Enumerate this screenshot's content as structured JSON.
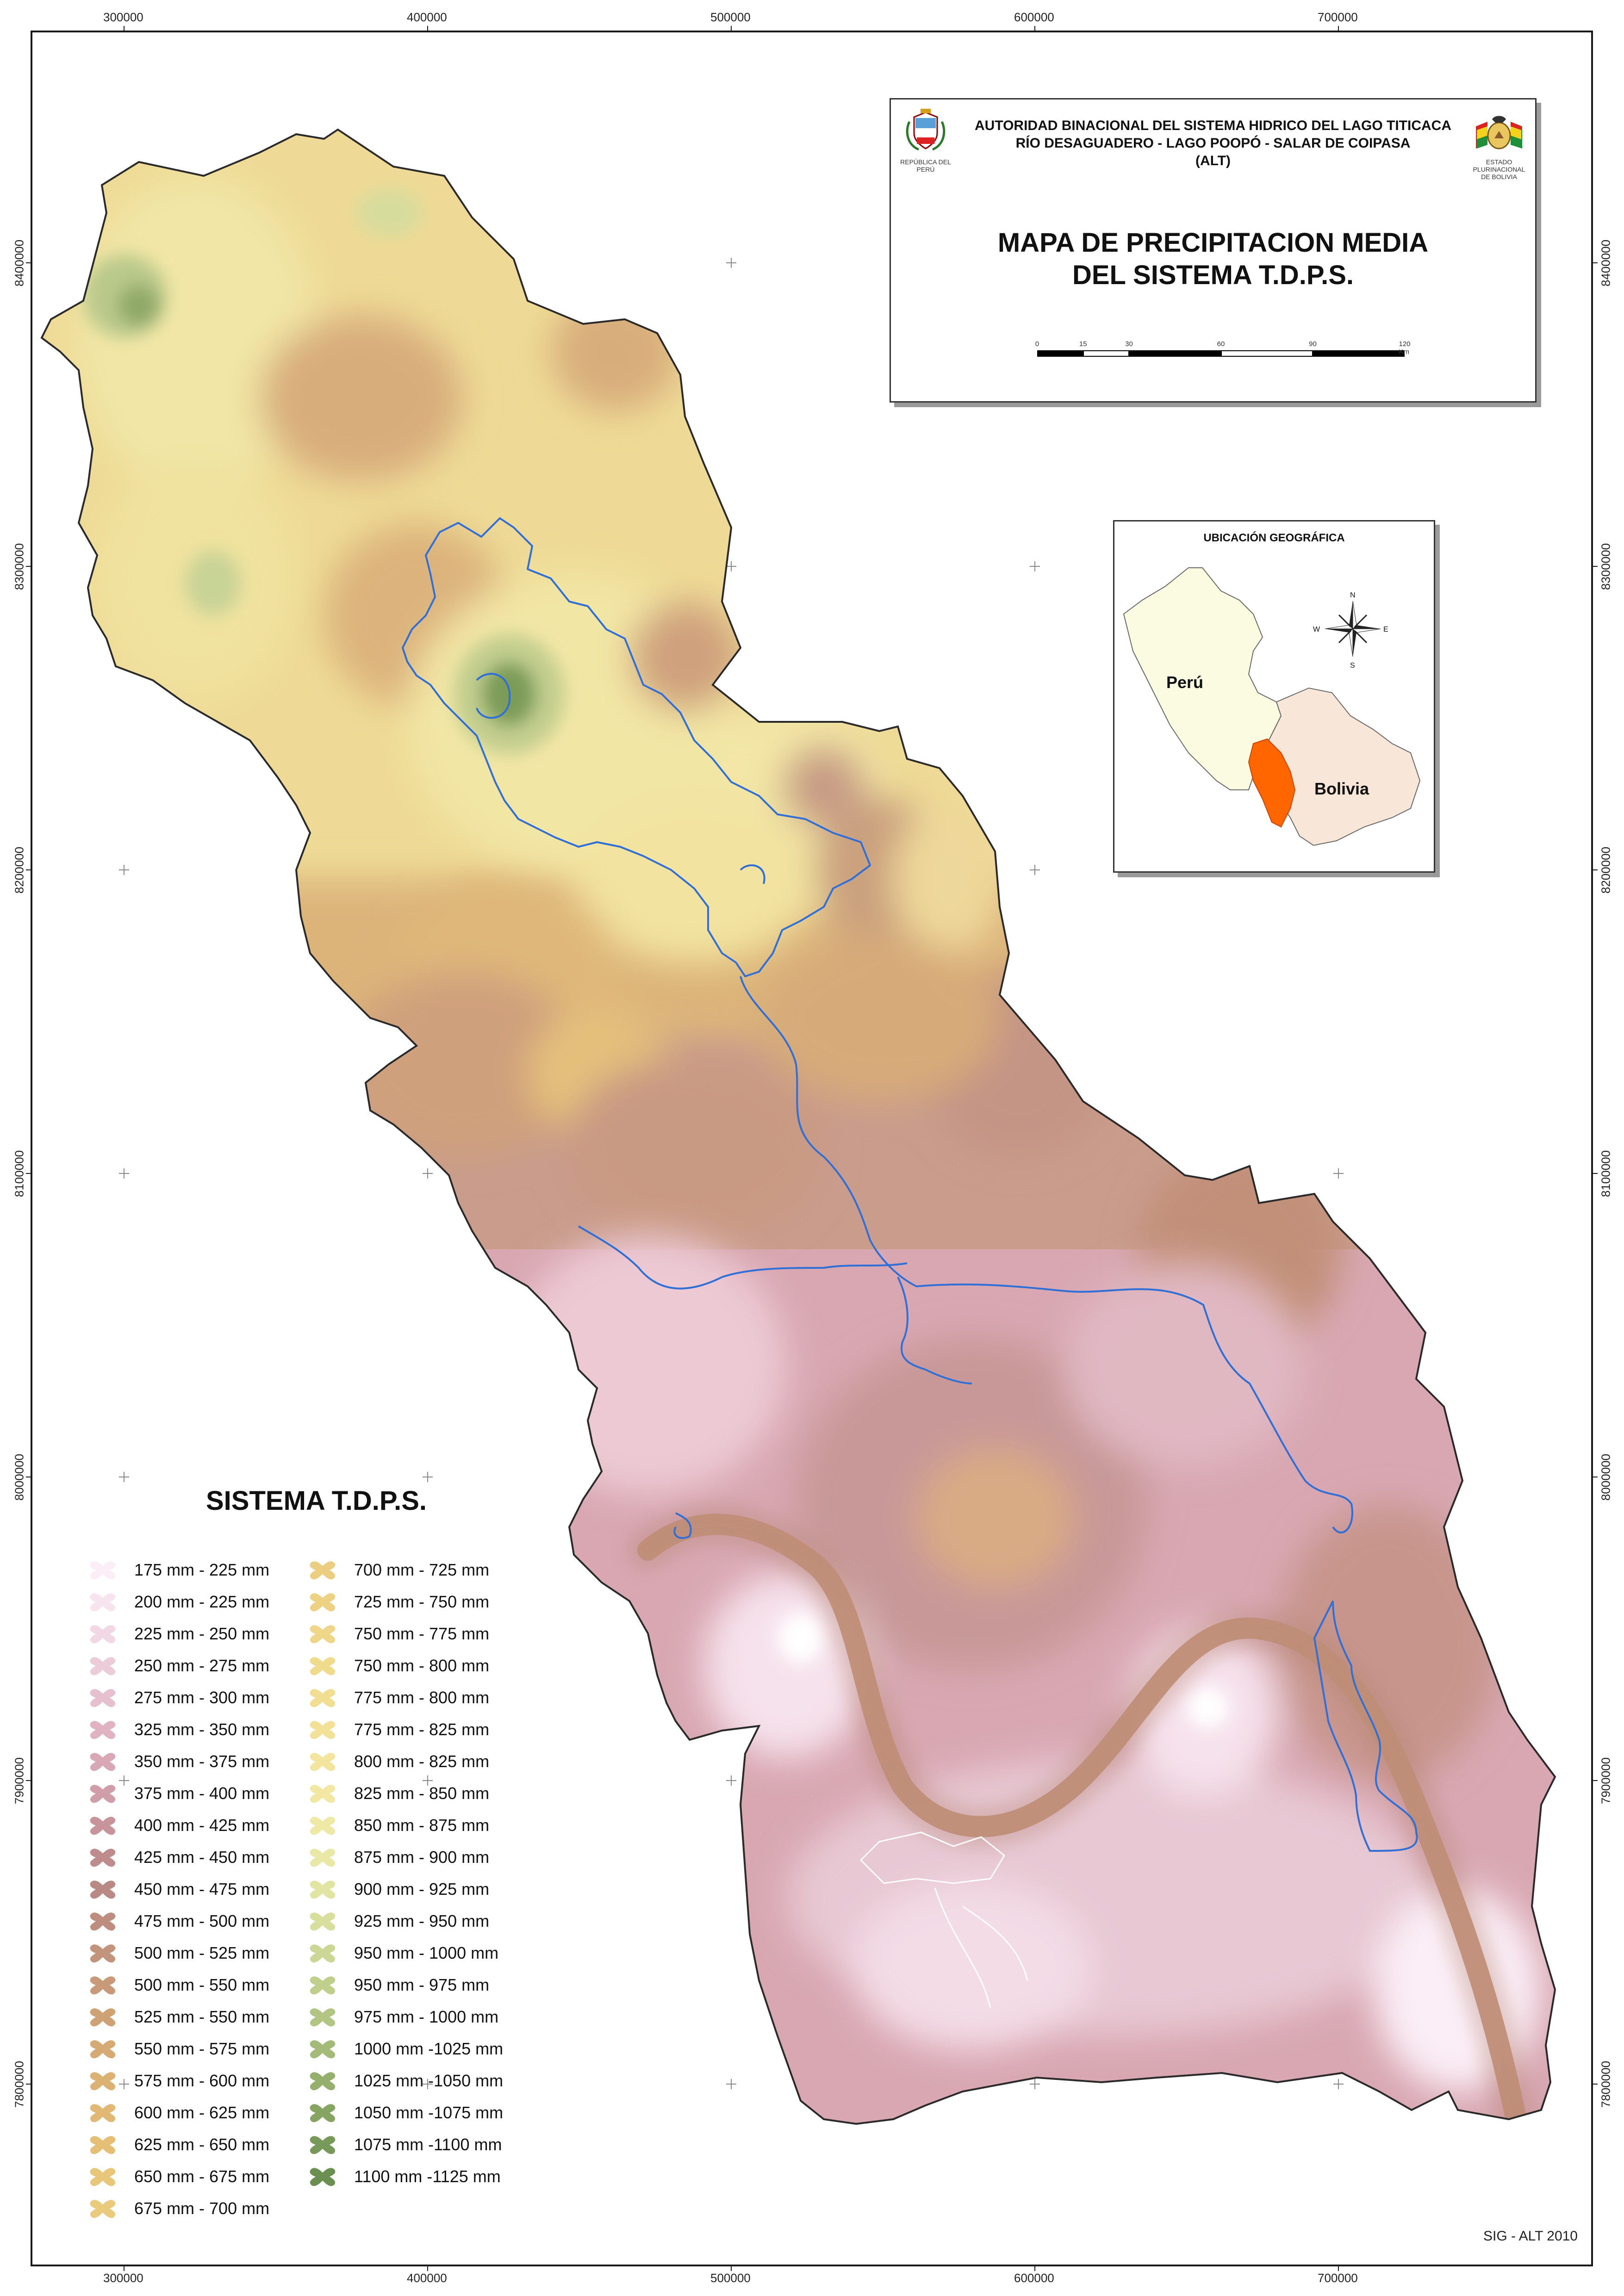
{
  "map": {
    "title_line1": "MAPA DE PRECIPITACION MEDIA",
    "title_line2": "DEL SISTEMA T.D.P.S.",
    "org_line1": "AUTORIDAD BINACIONAL DEL SISTEMA HIDRICO DEL LAGO TITICACA",
    "org_line2": "RÍO DESAGUADERO - LAGO POOPÓ - SALAR DE COIPASA",
    "org_line3": "(ALT)",
    "peru_emblem_caption": "REPÚBLICA DEL PERÚ",
    "bolivia_emblem_caption_1": "ESTADO PLURINACIONAL",
    "bolivia_emblem_caption_2": "DE BOLIVIA",
    "credit": "SIG - ALT 2010"
  },
  "scale": {
    "labels": [
      "0",
      "15",
      "30",
      "60",
      "90",
      "120 Km"
    ],
    "values_km": [
      0,
      15,
      30,
      60,
      90,
      120
    ]
  },
  "grid": {
    "easting_labels": [
      "300000",
      "400000",
      "500000",
      "600000",
      "700000"
    ],
    "northing_labels": [
      "8400000",
      "8300000",
      "8200000",
      "8100000",
      "8000000",
      "7900000",
      "7800000"
    ]
  },
  "location_inset": {
    "title": "UBICACIÓN GEOGRÁFICA",
    "country_1": "Perú",
    "country_2": "Bolivia",
    "compass": {
      "n": "N",
      "s": "S",
      "e": "E",
      "w": "W"
    }
  },
  "legend": {
    "title": "SISTEMA T.D.P.S.",
    "column_1": [
      {
        "label": "175 mm - 225 mm",
        "color": "#fbeef6"
      },
      {
        "label": "200 mm - 225 mm",
        "color": "#f7e4ee"
      },
      {
        "label": "225 mm - 250 mm",
        "color": "#f2d8e4"
      },
      {
        "label": "250 mm - 275 mm",
        "color": "#ecccd9"
      },
      {
        "label": "275 mm - 300 mm",
        "color": "#e6c0cf"
      },
      {
        "label": "325 mm - 350 mm",
        "color": "#dfb3c2"
      },
      {
        "label": "350 mm - 375 mm",
        "color": "#d9a8b6"
      },
      {
        "label": "375 mm - 400 mm",
        "color": "#d09ea8"
      },
      {
        "label": "400 mm - 425 mm",
        "color": "#c8949b"
      },
      {
        "label": "425 mm - 450 mm",
        "color": "#bf8c8e"
      },
      {
        "label": "450 mm - 475 mm",
        "color": "#b98a84"
      },
      {
        "label": "475 mm - 500 mm",
        "color": "#bd8e80"
      },
      {
        "label": "500 mm - 525 mm",
        "color": "#c2947c"
      },
      {
        "label": "500 mm - 550 mm",
        "color": "#c89a79"
      },
      {
        "label": "525 mm - 550 mm",
        "color": "#cfa276"
      },
      {
        "label": "550 mm - 575 mm",
        "color": "#d6aa74"
      },
      {
        "label": "575 mm - 600 mm",
        "color": "#dcb274"
      },
      {
        "label": "600 mm - 625 mm",
        "color": "#e1b974"
      },
      {
        "label": "625 mm - 650 mm",
        "color": "#e5bf76"
      },
      {
        "label": "650 mm - 675 mm",
        "color": "#e8c67a"
      },
      {
        "label": "675 mm - 700 mm",
        "color": "#eacb7d"
      }
    ],
    "column_2": [
      {
        "label": "700 mm - 725 mm",
        "color": "#ecce80"
      },
      {
        "label": "725 mm - 750 mm",
        "color": "#eed284"
      },
      {
        "label": "750 mm - 775 mm",
        "color": "#efd688"
      },
      {
        "label": "750 mm - 800 mm",
        "color": "#f0da8c"
      },
      {
        "label": "775 mm - 800 mm",
        "color": "#f1de91"
      },
      {
        "label": "775 mm - 825 mm",
        "color": "#f2e197"
      },
      {
        "label": "800 mm - 825 mm",
        "color": "#f3e59d"
      },
      {
        "label": "825 mm - 850 mm",
        "color": "#f2e8a3"
      },
      {
        "label": "850 mm - 875 mm",
        "color": "#efe9a6"
      },
      {
        "label": "875 mm - 900 mm",
        "color": "#eae8a6"
      },
      {
        "label": "900 mm - 925 mm",
        "color": "#e2e4a2"
      },
      {
        "label": "925 mm - 950 mm",
        "color": "#d8de9c"
      },
      {
        "label": "950 mm - 1000 mm",
        "color": "#cdd795"
      },
      {
        "label": "950 mm - 975 mm",
        "color": "#c1cf8d"
      },
      {
        "label": "975 mm - 1000 mm",
        "color": "#b3c583"
      },
      {
        "label": "1000 mm -1025 mm",
        "color": "#a4ba78"
      },
      {
        "label": "1025 mm -1050 mm",
        "color": "#95af6d"
      },
      {
        "label": "1050 mm -1075 mm",
        "color": "#86a462"
      },
      {
        "label": "1075 mm -1100 mm",
        "color": "#779959"
      },
      {
        "label": "1100 mm -1125 mm",
        "color": "#6a8f51"
      }
    ]
  }
}
